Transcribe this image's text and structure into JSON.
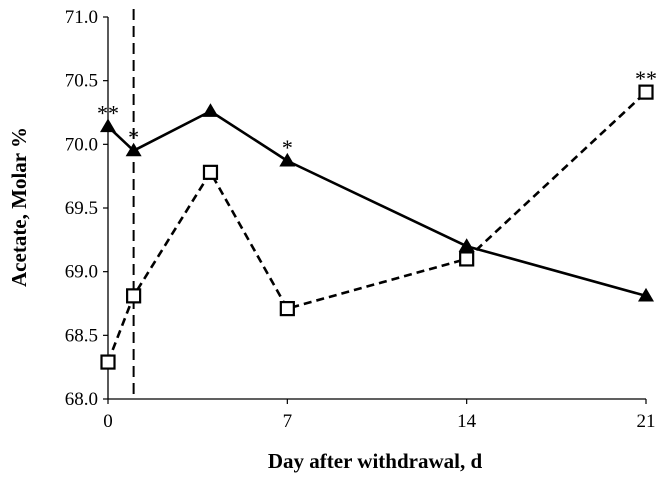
{
  "chart_data": {
    "type": "line",
    "xlabel": "Day after withdrawal, d",
    "ylabel": "Acetate, Molar %",
    "xlim": [
      0,
      21
    ],
    "ylim": [
      68.0,
      71.0
    ],
    "x_ticks": [
      0,
      7,
      14,
      21
    ],
    "y_ticks": [
      68.0,
      68.5,
      69.0,
      69.5,
      70.0,
      70.5,
      71.0
    ],
    "x_tick_labels": [
      "0",
      "7",
      "14",
      "21"
    ],
    "y_tick_labels": [
      "68.0",
      "68.5",
      "69.0",
      "69.5",
      "70.0",
      "70.5",
      "71.0"
    ],
    "grid": false,
    "reference_line": {
      "x": 1,
      "style": "dashed"
    },
    "series": [
      {
        "marker": "filled-triangle",
        "line_style": "solid",
        "color": "#000000",
        "x": [
          0,
          1,
          4,
          7,
          14,
          21
        ],
        "y": [
          70.14,
          69.95,
          70.26,
          69.87,
          69.2,
          68.81
        ]
      },
      {
        "marker": "open-square",
        "line_style": "dashed",
        "color": "#000000",
        "x": [
          0,
          1,
          4,
          7,
          14,
          21
        ],
        "y": [
          68.29,
          68.81,
          69.78,
          68.71,
          69.1,
          70.41
        ]
      }
    ],
    "annotations": [
      {
        "text": "**",
        "x": 0,
        "y": 70.14
      },
      {
        "text": "*",
        "x": 1,
        "y": 69.95
      },
      {
        "text": "*",
        "x": 7,
        "y": 69.87
      },
      {
        "text": "**",
        "x": 21,
        "y": 70.41
      }
    ]
  }
}
